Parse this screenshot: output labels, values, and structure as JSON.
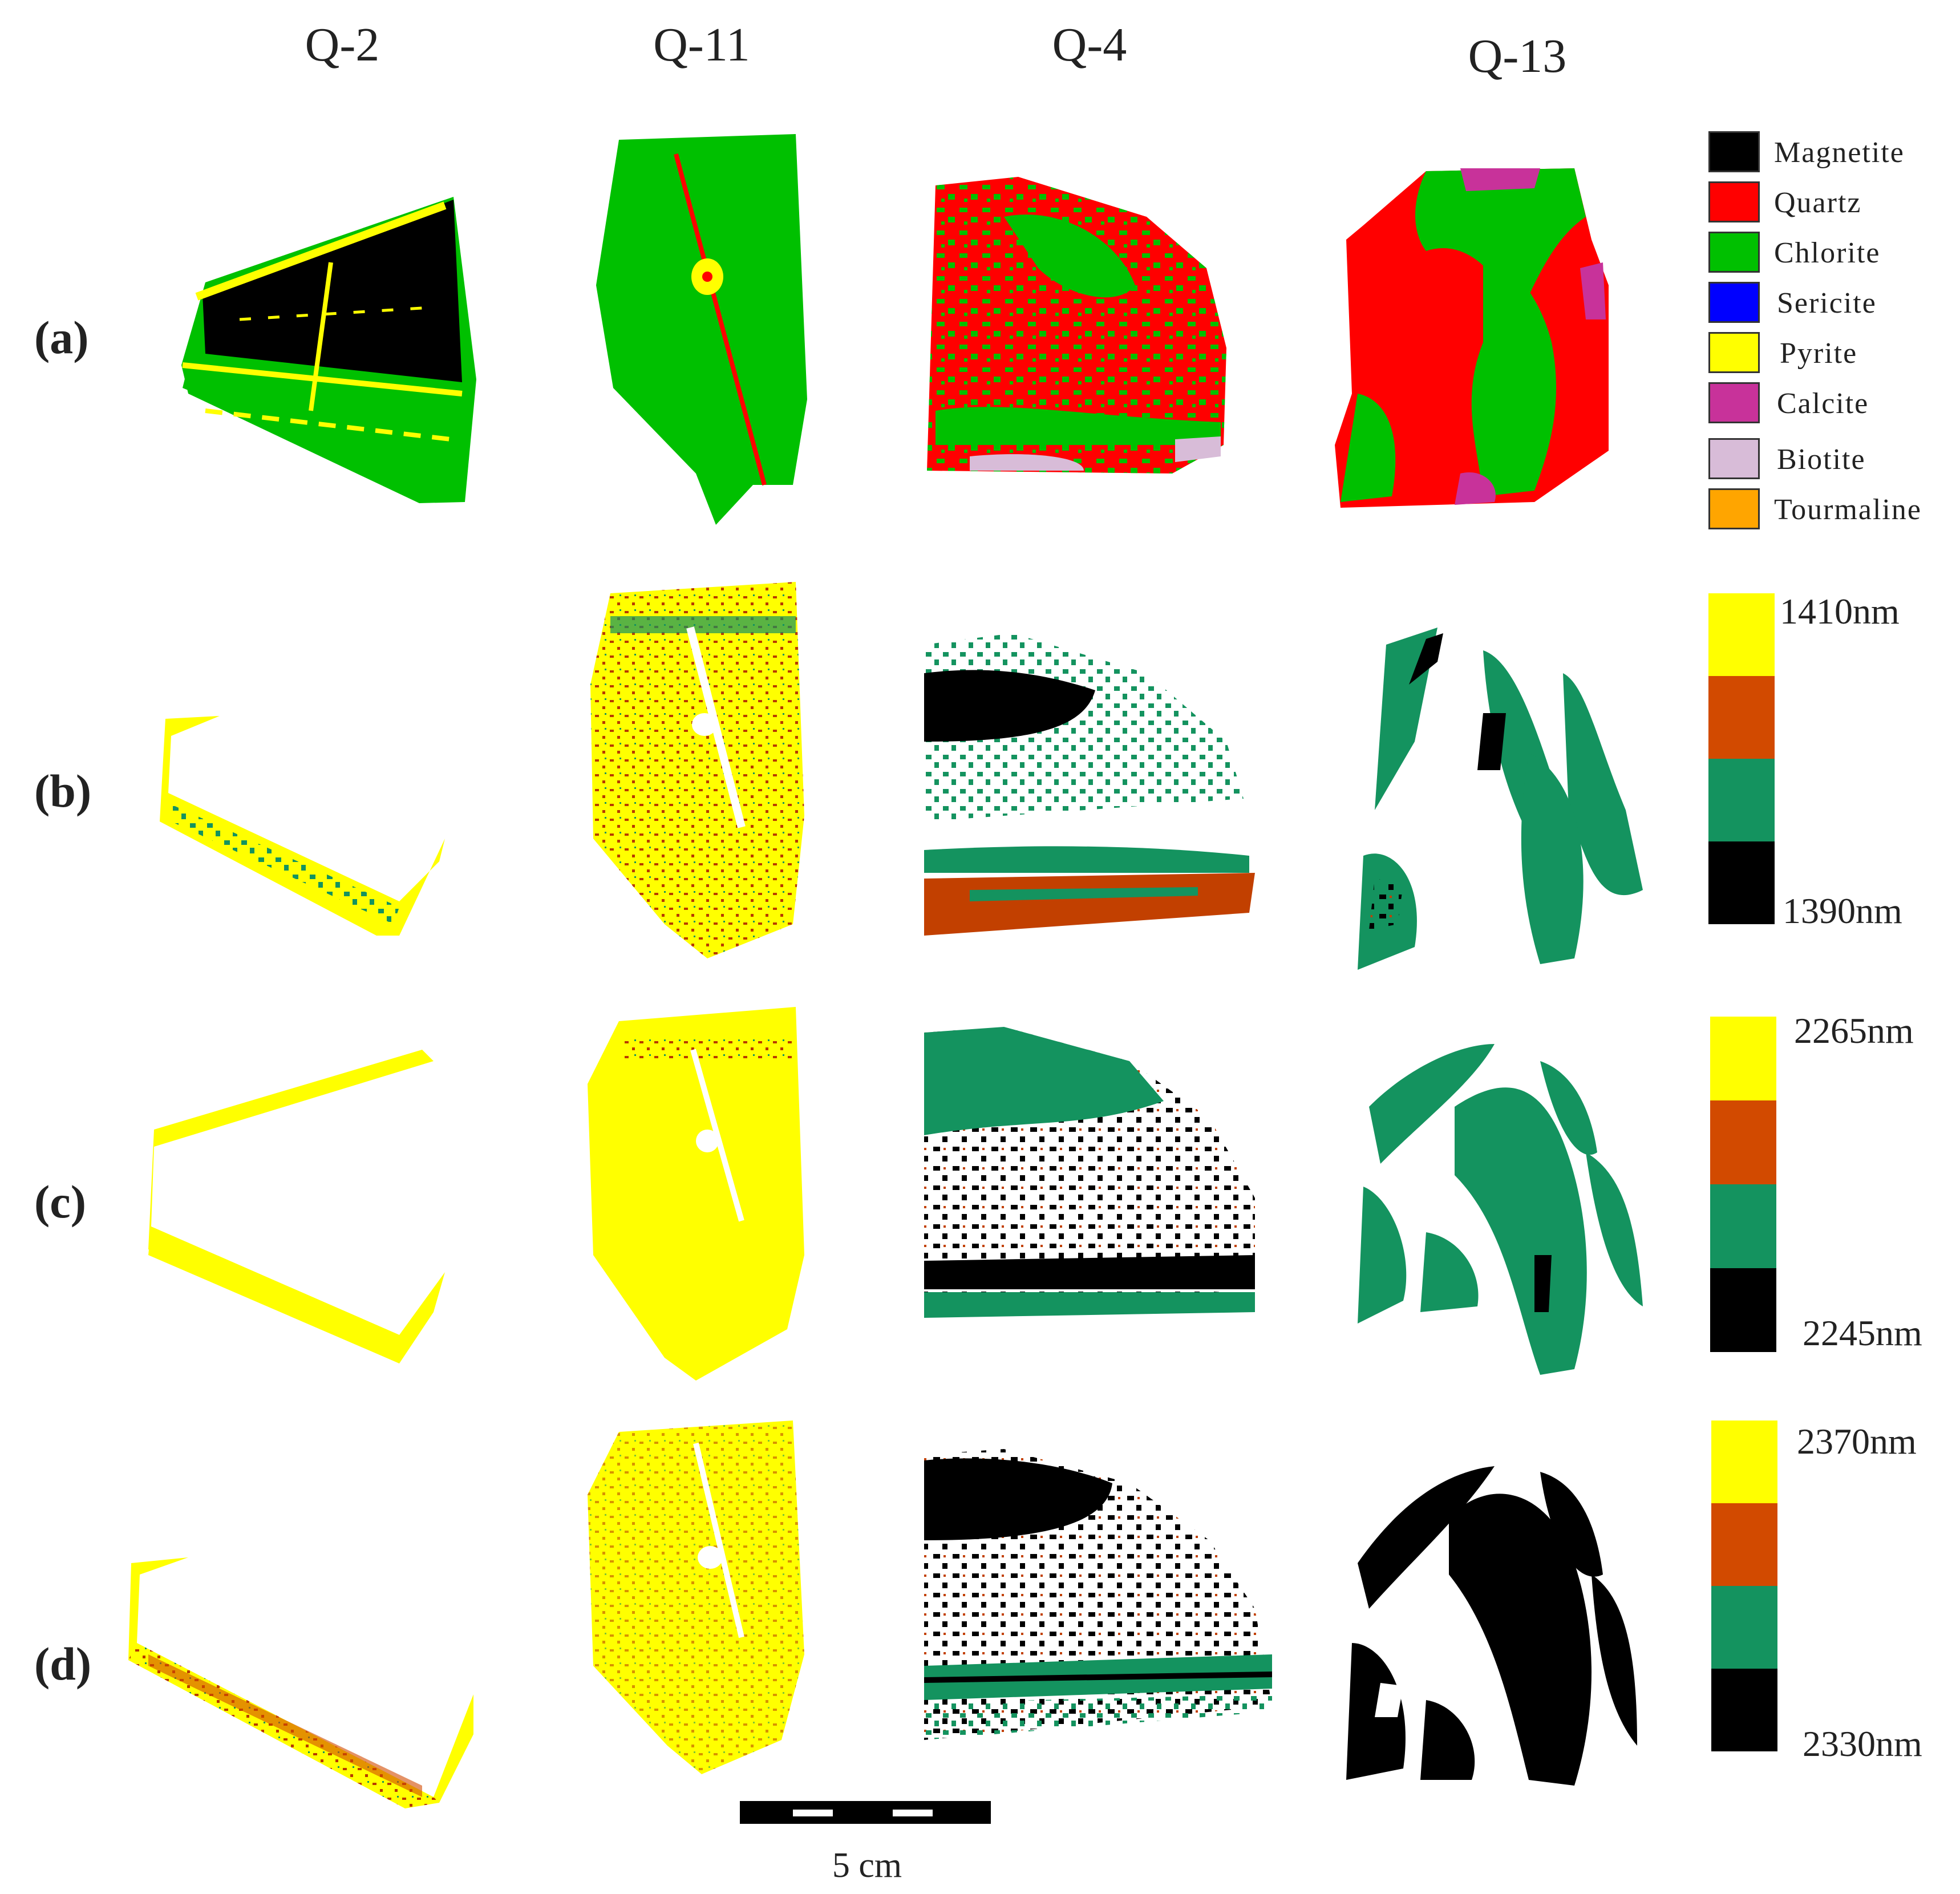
{
  "columns": [
    "Q-2",
    "Q-11",
    "Q-4",
    "Q-13"
  ],
  "rows": [
    "(a)",
    "(b)",
    "(c)",
    "(d)"
  ],
  "legend": [
    {
      "label": "Magnetite",
      "color": "#000000"
    },
    {
      "label": "Quartz",
      "color": "#ff0000"
    },
    {
      "label": "Chlorite",
      "color": "#00c000"
    },
    {
      "label": "Sericite",
      "color": "#0000ff"
    },
    {
      "label": "Pyrite",
      "color": "#ffff00"
    },
    {
      "label": "Calcite",
      "color": "#c8329a"
    },
    {
      "label": "Biotite",
      "color": "#d8bcd8"
    },
    {
      "label": "Tourmaline",
      "color": "#ffa500"
    }
  ],
  "colorbars": [
    {
      "top": "1410nm",
      "bottom": "1390nm"
    },
    {
      "top": "2265nm",
      "bottom": "2245nm"
    },
    {
      "top": "2370nm",
      "bottom": "2330nm"
    }
  ],
  "colorbar_colors": [
    "#ffff00",
    "#d24a00",
    "#14935f",
    "#000000"
  ],
  "scale_bar": {
    "label": "5 cm"
  }
}
